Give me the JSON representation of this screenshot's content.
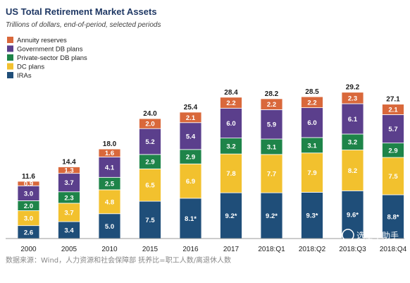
{
  "chart_data": {
    "type": "bar",
    "stacked": true,
    "title": "US Total Retirement Market Assets",
    "subtitle": "Trillions of dollars, end-of-period, selected periods",
    "categories": [
      "2000",
      "2005",
      "2010",
      "2015",
      "2016",
      "2017",
      "2018:Q1",
      "2018:Q2",
      "2018:Q3",
      "2018:Q4"
    ],
    "totals": [
      "11.6",
      "14.4",
      "18.0",
      "24.0",
      "25.4",
      "28.4",
      "28.2",
      "28.5",
      "29.2",
      "27.1"
    ],
    "series": [
      {
        "name": "IRAs",
        "color": "#1f4e79",
        "text_color": "#ffffff",
        "values": [
          2.6,
          3.4,
          5.0,
          7.5,
          8.1,
          9.2,
          9.2,
          9.3,
          9.6,
          8.8
        ],
        "labels": [
          "2.6",
          "3.4",
          "5.0",
          "7.5",
          "8.1*",
          "9.2*",
          "9.2*",
          "9.3*",
          "9.6*",
          "8.8*"
        ]
      },
      {
        "name": "DC plans",
        "color": "#f2c12e",
        "text_color": "#ffffff",
        "values": [
          3.0,
          3.7,
          4.8,
          6.5,
          6.9,
          7.8,
          7.7,
          7.9,
          8.2,
          7.5
        ],
        "labels": [
          "3.0",
          "3.7",
          "4.8",
          "6.5",
          "6.9",
          "7.8",
          "7.7",
          "7.9",
          "8.2",
          "7.5"
        ]
      },
      {
        "name": "Private-sector DB plans",
        "color": "#1e8449",
        "text_color": "#ffffff",
        "values": [
          2.0,
          2.3,
          2.5,
          2.9,
          2.9,
          3.2,
          3.1,
          3.1,
          3.2,
          2.9
        ],
        "labels": [
          "2.0",
          "2.3",
          "2.5",
          "2.9",
          "2.9",
          "3.2",
          "3.1",
          "3.1",
          "3.2",
          "2.9"
        ]
      },
      {
        "name": "Government DB plans",
        "color": "#5b3f8c",
        "text_color": "#ffffff",
        "values": [
          3.0,
          3.7,
          4.1,
          5.2,
          5.4,
          6.0,
          5.9,
          6.0,
          6.1,
          5.7
        ],
        "labels": [
          "3.0",
          "3.7",
          "4.1",
          "5.2",
          "5.4",
          "6.0",
          "5.9",
          "6.0",
          "6.1",
          "5.7"
        ]
      },
      {
        "name": "Annuity reserves",
        "color": "#d9683b",
        "text_color": "#ffffff",
        "values": [
          0.9,
          1.3,
          1.6,
          2.0,
          2.1,
          2.2,
          2.2,
          2.2,
          2.3,
          2.1
        ],
        "labels": [
          "0.9",
          "1.3",
          "1.6",
          "2.0",
          "2.1",
          "2.2",
          "2.2",
          "2.2",
          "2.3",
          "2.1"
        ]
      }
    ],
    "legend_order": [
      "Annuity reserves",
      "Government DB plans",
      "Private-sector DB plans",
      "DC plans",
      "IRAs"
    ],
    "legend_position": "top-left",
    "ylim": [
      0,
      32
    ],
    "grid": false
  },
  "footer": {
    "source_text": "数据来源：Wind，人力资源和社会保障部 抚养比=职工人数/离退休人数",
    "watermark_text": "选基小助手"
  }
}
